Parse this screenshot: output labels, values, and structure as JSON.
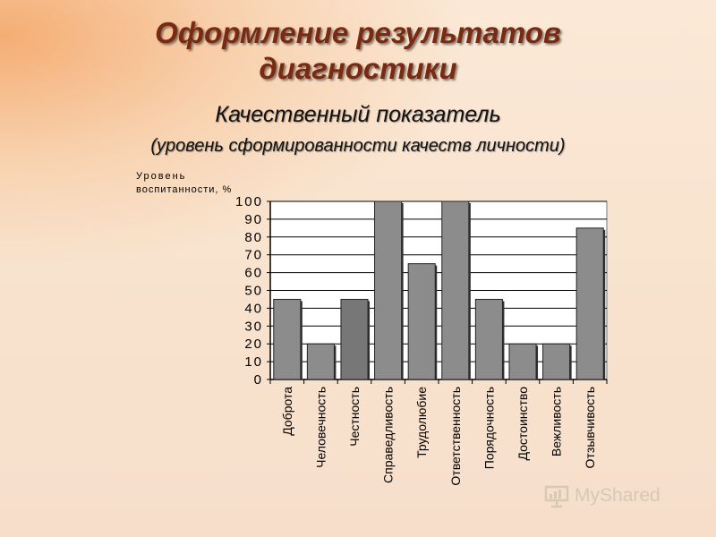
{
  "header": {
    "title_line1": "Оформление результатов",
    "title_line2": "диагностики",
    "subtitle": "Качественный показатель",
    "subtitle2": "(уровень сформированности качеств личности)"
  },
  "colors": {
    "title": "#7a2a12",
    "bar_fill": "#8c8c8c",
    "bar_fill_alt": "#777777",
    "plot_bg": "#ffffff",
    "grid": "#000000"
  },
  "watermark": {
    "text": "MyShared",
    "icon": "presentation-board-icon"
  },
  "chart_data": {
    "type": "bar",
    "ylabel_line1": "Уровень",
    "ylabel_line2": "воспитанности, %",
    "ylim": [
      0,
      100
    ],
    "yticks": [
      0,
      10,
      20,
      30,
      40,
      50,
      60,
      70,
      80,
      90,
      100
    ],
    "grid": true,
    "categories": [
      "Доброта",
      "Человечность",
      "Честность",
      "Справедливость",
      "Трудолюбие",
      "Ответственность",
      "Порядочность",
      "Достоинство",
      "Вежливость",
      "Отзывчивость"
    ],
    "values": [
      45,
      20,
      45,
      100,
      65,
      100,
      45,
      20,
      20,
      85
    ]
  }
}
